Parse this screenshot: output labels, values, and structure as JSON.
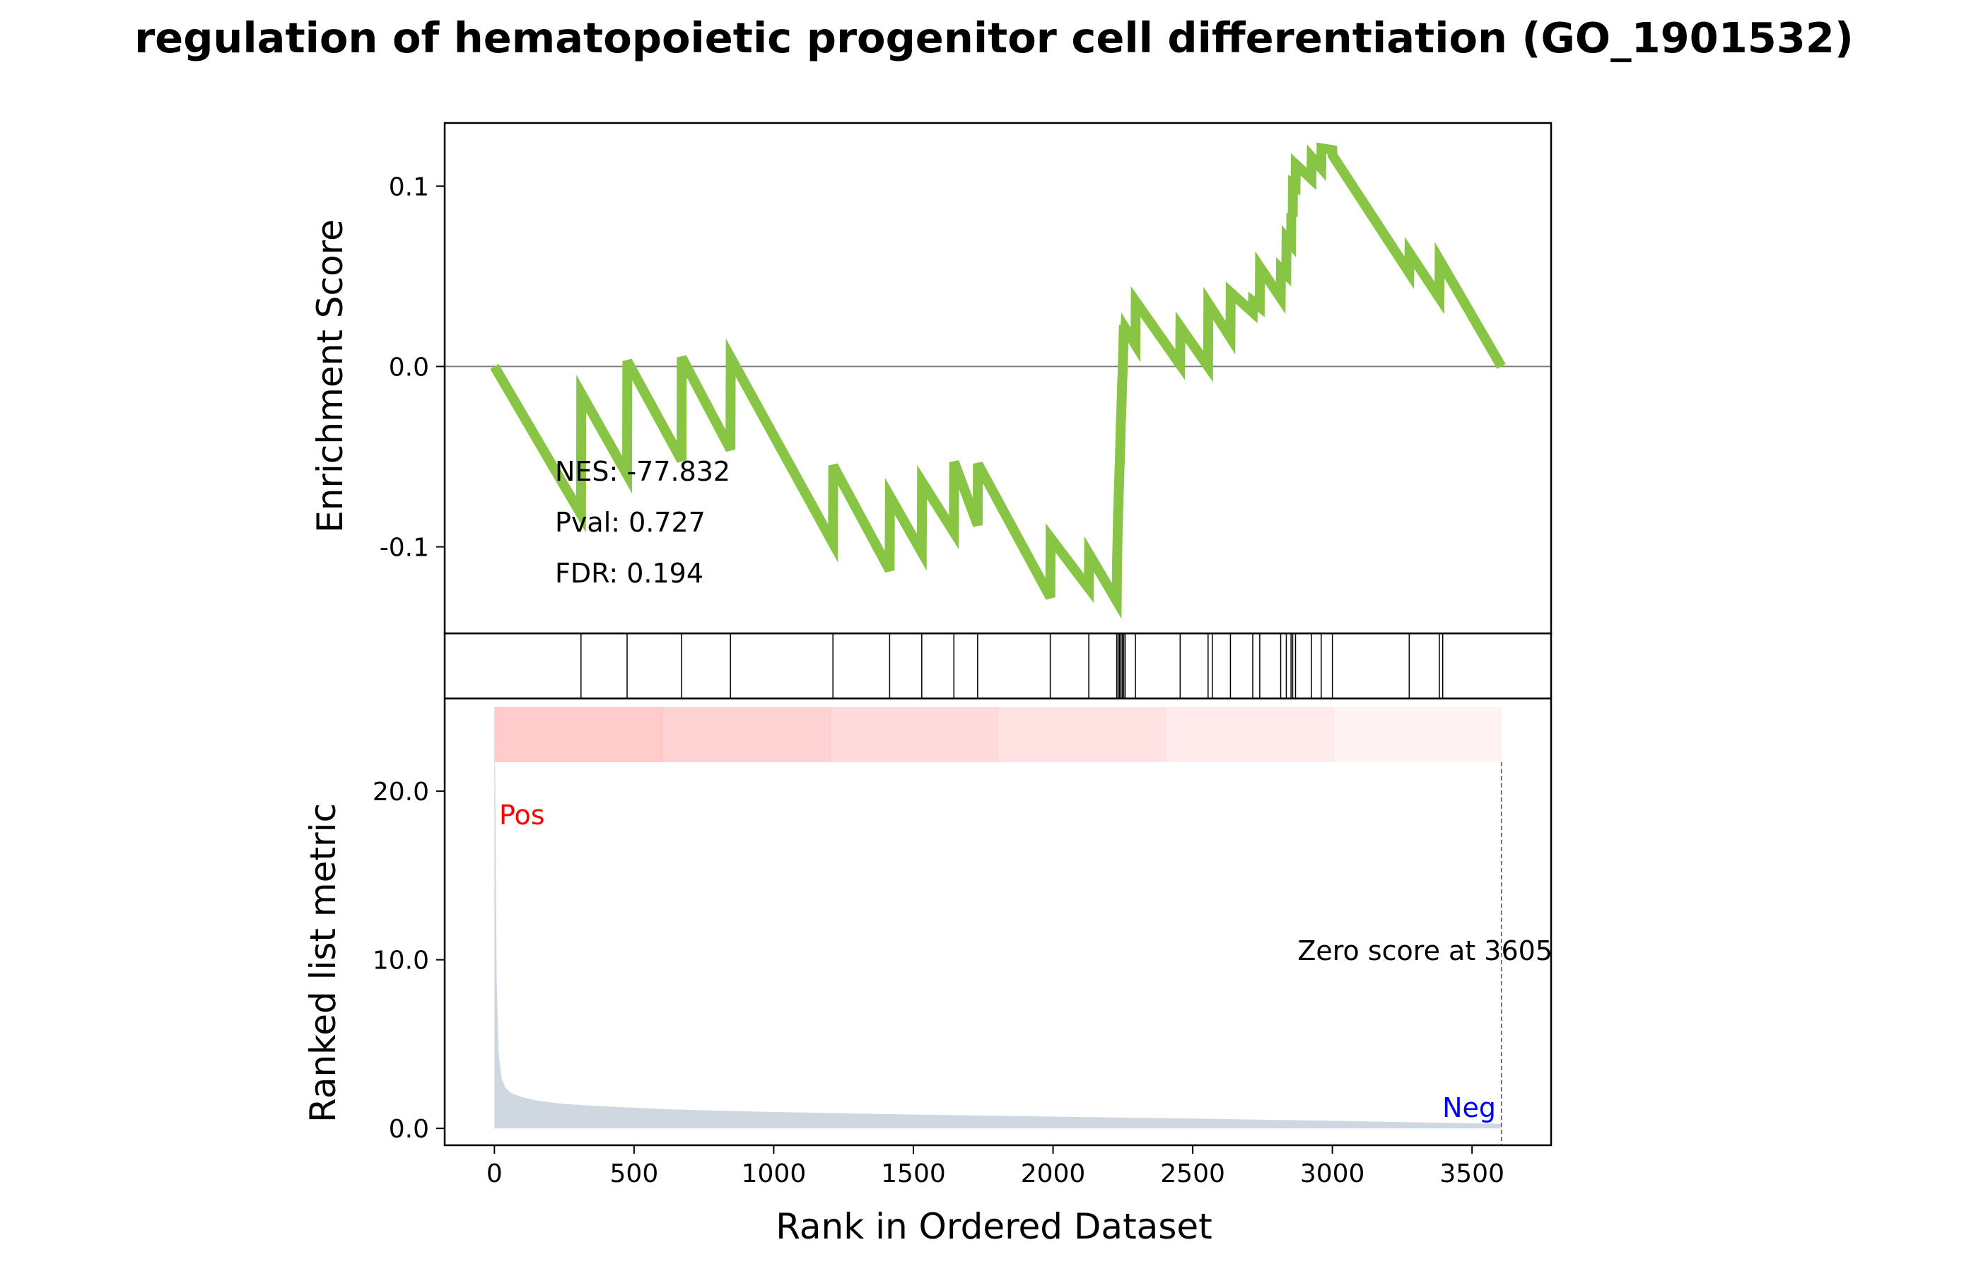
{
  "chart_data": {
    "type": "line",
    "title": "regulation of hematopoietic progenitor cell differentiation (GO_1901532)",
    "xlabel": "Rank in Ordered Dataset",
    "stats": {
      "nes": "NES: -77.832",
      "pval": "Pval: 0.727",
      "fdr": "FDR: 0.194"
    },
    "colors": {
      "es_line": "#88c544",
      "metric_fill": "#cfd8e0",
      "pos_label": "#ff0000",
      "neg_label": "#0000ff",
      "heat": "#ff6b6b"
    },
    "x_ticks": [
      0,
      500,
      1000,
      1500,
      2000,
      2500,
      3000,
      3500
    ],
    "es_panel": {
      "ylabel": "Enrichment Score",
      "ylim": [
        -0.148,
        0.135
      ],
      "y_ticks": [
        {
          "value": 0.1,
          "label": "0.1"
        },
        {
          "value": 0.0,
          "label": "0.0"
        },
        {
          "value": -0.1,
          "label": "-0.1"
        }
      ],
      "series": [
        {
          "x": [
            0,
            310,
            311,
            475,
            476,
            670,
            671,
            845,
            846,
            1212,
            1213,
            1415,
            1416,
            1530,
            1531,
            1645,
            1646,
            1730,
            1731,
            1990,
            1991,
            2128,
            2129,
            2228,
            2229,
            2233,
            2234,
            2238,
            2239,
            2243,
            2244,
            2248,
            2249,
            2253,
            2254,
            2258,
            2259,
            2295,
            2296,
            2455,
            2456,
            2555,
            2556,
            2635,
            2636,
            2715,
            2716,
            2740,
            2741,
            2815,
            2816,
            2835,
            2836,
            2852,
            2853,
            2858,
            2859,
            2868,
            2869,
            2925,
            2926,
            2960,
            2961,
            3000,
            3001,
            3275,
            3276,
            3383,
            3384,
            3605
          ],
          "y": [
            0.0,
            -0.082,
            -0.015,
            -0.06,
            0.003,
            -0.052,
            0.005,
            -0.046,
            0.005,
            -0.098,
            -0.055,
            -0.113,
            -0.072,
            -0.103,
            -0.064,
            -0.092,
            -0.053,
            -0.088,
            -0.054,
            -0.128,
            -0.095,
            -0.123,
            -0.104,
            -0.13,
            -0.11,
            -0.08,
            -0.077,
            -0.056,
            -0.053,
            -0.03,
            -0.027,
            -0.007,
            -0.004,
            0.02,
            0.023,
            0.018,
            0.021,
            0.012,
            0.036,
            0.001,
            0.022,
            0.0,
            0.035,
            0.016,
            0.041,
            0.03,
            0.036,
            0.033,
            0.055,
            0.038,
            0.054,
            0.051,
            0.071,
            0.068,
            0.085,
            0.083,
            0.101,
            0.1,
            0.112,
            0.104,
            0.116,
            0.11,
            0.121,
            0.12,
            0.117,
            0.052,
            0.063,
            0.038,
            0.059,
            0.0
          ]
        }
      ]
    },
    "hits": [
      310,
      475,
      670,
      845,
      1212,
      1415,
      1530,
      1645,
      1730,
      1990,
      2128,
      2228,
      2233,
      2238,
      2243,
      2248,
      2253,
      2258,
      2295,
      2455,
      2555,
      2570,
      2635,
      2715,
      2740,
      2815,
      2835,
      2852,
      2858,
      2868,
      2925,
      2960,
      3000,
      3275,
      3383,
      3395
    ],
    "metric_panel": {
      "ylabel": "Ranked list metric",
      "ylim": [
        -1.0,
        25.5
      ],
      "y_ticks": [
        {
          "value": 0.0,
          "label": "0.0"
        },
        {
          "value": 10.0,
          "label": "10.0"
        },
        {
          "value": 20.0,
          "label": "20.0"
        }
      ],
      "pos_label": "Pos",
      "neg_label": "Neg",
      "zero_score_label": "Zero score at 3605",
      "zero_score_x": 3605,
      "series": {
        "x": [
          0,
          3,
          8,
          15,
          25,
          40,
          60,
          100,
          150,
          250,
          400,
          600,
          800,
          1000,
          1500,
          2000,
          2500,
          3000,
          3500,
          3605
        ],
        "y": [
          25.0,
          21.0,
          9.0,
          4.5,
          3.0,
          2.4,
          2.1,
          1.85,
          1.65,
          1.45,
          1.3,
          1.15,
          1.05,
          0.97,
          0.82,
          0.7,
          0.58,
          0.45,
          0.3,
          0.27
        ]
      }
    }
  }
}
